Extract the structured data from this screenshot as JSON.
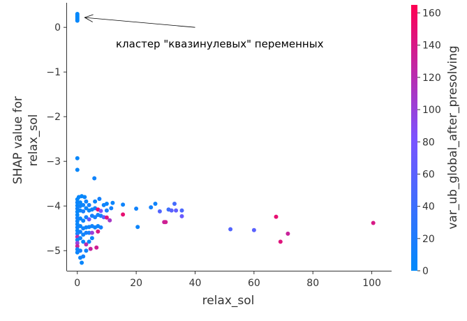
{
  "chart_data": {
    "type": "scatter",
    "title": "",
    "xlabel": "relax_sol",
    "ylabel": [
      "SHAP value for",
      "relax_sol"
    ],
    "xlim": [
      -3.5,
      106.5
    ],
    "ylim": [
      -5.45,
      0.55
    ],
    "xticks": [
      0,
      20,
      40,
      60,
      80,
      100
    ],
    "yticks": [
      0,
      -1,
      -2,
      -3,
      -4,
      -5
    ],
    "xtick_labels": [
      "0",
      "20",
      "40",
      "60",
      "80",
      "100"
    ],
    "ytick_labels": [
      "0",
      "−1",
      "−2",
      "−3",
      "−4",
      "−5"
    ],
    "grid": false,
    "colorbar": {
      "label": "var_ub_global_after_presolving",
      "range": [
        0,
        165
      ],
      "ticks": [
        0,
        20,
        40,
        60,
        80,
        100,
        120,
        140,
        160
      ],
      "tick_labels": [
        "0",
        "20",
        "40",
        "60",
        "80",
        "100",
        "120",
        "140",
        "160"
      ],
      "low_color": "#008afb",
      "mid_color": "#7c52ff",
      "high_color": "#ff0052"
    },
    "annotation": {
      "text": "кластер \"квазинулевых\" переменных",
      "arrow_from": [
        40,
        0.0
      ],
      "arrow_to": [
        2.5,
        0.22
      ]
    },
    "points": [
      {
        "x": 0.0,
        "y": 0.3,
        "c": 2
      },
      {
        "x": 0.0,
        "y": 0.27,
        "c": 4
      },
      {
        "x": 0.0,
        "y": 0.24,
        "c": 1
      },
      {
        "x": 0.0,
        "y": 0.21,
        "c": 3
      },
      {
        "x": 0.0,
        "y": 0.18,
        "c": 2
      },
      {
        "x": 0.0,
        "y": 0.15,
        "c": 5
      },
      {
        "x": 0.0,
        "y": -2.93,
        "c": 5
      },
      {
        "x": 0.0,
        "y": -3.19,
        "c": 5
      },
      {
        "x": 5.8,
        "y": -3.38,
        "c": 10
      },
      {
        "x": 0.5,
        "y": -3.8,
        "c": 5
      },
      {
        "x": 1.5,
        "y": -3.78,
        "c": 4
      },
      {
        "x": 2.5,
        "y": -3.8,
        "c": 6
      },
      {
        "x": 0.0,
        "y": -3.85,
        "c": 3
      },
      {
        "x": 0.0,
        "y": -3.92,
        "c": 8
      },
      {
        "x": 0.0,
        "y": -3.99,
        "c": 6
      },
      {
        "x": 0.0,
        "y": -4.06,
        "c": 10
      },
      {
        "x": 0.0,
        "y": -4.13,
        "c": 4
      },
      {
        "x": 0.0,
        "y": -4.2,
        "c": 3
      },
      {
        "x": 0.0,
        "y": -4.27,
        "c": 12
      },
      {
        "x": 0.0,
        "y": -4.34,
        "c": 7
      },
      {
        "x": 0.0,
        "y": -4.41,
        "c": 5
      },
      {
        "x": 0.0,
        "y": -4.48,
        "c": 9
      },
      {
        "x": 0.0,
        "y": -4.55,
        "c": 6
      },
      {
        "x": 0.0,
        "y": -4.62,
        "c": 14
      },
      {
        "x": 0.0,
        "y": -4.69,
        "c": 120
      },
      {
        "x": 0.0,
        "y": -4.76,
        "c": 8
      },
      {
        "x": 0.0,
        "y": -4.83,
        "c": 100
      },
      {
        "x": 0.0,
        "y": -4.9,
        "c": 130
      },
      {
        "x": 0.0,
        "y": -4.97,
        "c": 11
      },
      {
        "x": 0.0,
        "y": -5.04,
        "c": 7
      },
      {
        "x": 1.0,
        "y": -3.92,
        "c": 4
      },
      {
        "x": 1.0,
        "y": -4.0,
        "c": 9
      },
      {
        "x": 1.0,
        "y": -4.1,
        "c": 6
      },
      {
        "x": 1.0,
        "y": -4.28,
        "c": 5
      },
      {
        "x": 1.0,
        "y": -4.45,
        "c": 7
      },
      {
        "x": 1.0,
        "y": -4.58,
        "c": 12
      },
      {
        "x": 1.0,
        "y": -4.72,
        "c": 10
      },
      {
        "x": 1.0,
        "y": -5.0,
        "c": 15
      },
      {
        "x": 1.0,
        "y": -5.16,
        "c": 8
      },
      {
        "x": 1.5,
        "y": -5.27,
        "c": 6
      },
      {
        "x": 2.0,
        "y": -3.98,
        "c": 8
      },
      {
        "x": 2.0,
        "y": -4.12,
        "c": 16
      },
      {
        "x": 2.0,
        "y": -4.33,
        "c": 7
      },
      {
        "x": 2.0,
        "y": -4.5,
        "c": 11
      },
      {
        "x": 2.0,
        "y": -4.64,
        "c": 9
      },
      {
        "x": 2.0,
        "y": -4.8,
        "c": 6
      },
      {
        "x": 2.0,
        "y": -5.13,
        "c": 12
      },
      {
        "x": 3.0,
        "y": -3.9,
        "c": 10
      },
      {
        "x": 3.0,
        "y": -4.05,
        "c": 7
      },
      {
        "x": 3.0,
        "y": -4.25,
        "c": 13
      },
      {
        "x": 3.0,
        "y": -4.48,
        "c": 8
      },
      {
        "x": 3.0,
        "y": -4.6,
        "c": 14
      },
      {
        "x": 3.0,
        "y": -4.86,
        "c": 120
      },
      {
        "x": 3.0,
        "y": -5.0,
        "c": 9
      },
      {
        "x": 4.0,
        "y": -3.98,
        "c": 12
      },
      {
        "x": 4.0,
        "y": -4.1,
        "c": 6
      },
      {
        "x": 4.0,
        "y": -4.3,
        "c": 70
      },
      {
        "x": 4.0,
        "y": -4.47,
        "c": 10
      },
      {
        "x": 4.0,
        "y": -4.6,
        "c": 15
      },
      {
        "x": 4.0,
        "y": -4.8,
        "c": 8
      },
      {
        "x": 4.5,
        "y": -4.96,
        "c": 130
      },
      {
        "x": 5.0,
        "y": -4.08,
        "c": 9
      },
      {
        "x": 5.0,
        "y": -4.22,
        "c": 14
      },
      {
        "x": 5.0,
        "y": -4.45,
        "c": 11
      },
      {
        "x": 5.0,
        "y": -4.6,
        "c": 100
      },
      {
        "x": 5.0,
        "y": -4.72,
        "c": 7
      },
      {
        "x": 6.0,
        "y": -3.9,
        "c": 8
      },
      {
        "x": 6.0,
        "y": -4.05,
        "c": 12
      },
      {
        "x": 6.0,
        "y": -4.25,
        "c": 16
      },
      {
        "x": 6.0,
        "y": -4.48,
        "c": 10
      },
      {
        "x": 6.5,
        "y": -4.93,
        "c": 135
      },
      {
        "x": 7.0,
        "y": -4.08,
        "c": 150
      },
      {
        "x": 7.0,
        "y": -4.2,
        "c": 11
      },
      {
        "x": 7.0,
        "y": -4.45,
        "c": 9
      },
      {
        "x": 7.0,
        "y": -4.57,
        "c": 140
      },
      {
        "x": 7.5,
        "y": -3.84,
        "c": 13
      },
      {
        "x": 8.0,
        "y": -4.11,
        "c": 80
      },
      {
        "x": 8.0,
        "y": -4.22,
        "c": 12
      },
      {
        "x": 8.0,
        "y": -4.48,
        "c": 14
      },
      {
        "x": 9.0,
        "y": -3.98,
        "c": 10
      },
      {
        "x": 9.0,
        "y": -4.25,
        "c": 60
      },
      {
        "x": 10.0,
        "y": -3.95,
        "c": 8
      },
      {
        "x": 10.0,
        "y": -4.1,
        "c": 15
      },
      {
        "x": 10.0,
        "y": -4.26,
        "c": 145
      },
      {
        "x": 11.0,
        "y": -4.32,
        "c": 110
      },
      {
        "x": 12.0,
        "y": -3.93,
        "c": 7
      },
      {
        "x": 11.5,
        "y": -4.05,
        "c": 12
      },
      {
        "x": 15.5,
        "y": -3.97,
        "c": 9
      },
      {
        "x": 15.5,
        "y": -4.19,
        "c": 150
      },
      {
        "x": 20.0,
        "y": -4.06,
        "c": 11
      },
      {
        "x": 20.5,
        "y": -4.47,
        "c": 8
      },
      {
        "x": 25.0,
        "y": -4.03,
        "c": 13
      },
      {
        "x": 26.5,
        "y": -3.95,
        "c": 10
      },
      {
        "x": 28.0,
        "y": -4.12,
        "c": 55
      },
      {
        "x": 29.5,
        "y": -4.36,
        "c": 130
      },
      {
        "x": 30.0,
        "y": -4.36,
        "c": 135
      },
      {
        "x": 31.0,
        "y": -4.08,
        "c": 40
      },
      {
        "x": 32.0,
        "y": -4.1,
        "c": 60
      },
      {
        "x": 33.0,
        "y": -3.95,
        "c": 45
      },
      {
        "x": 33.5,
        "y": -4.1,
        "c": 65
      },
      {
        "x": 35.5,
        "y": -4.1,
        "c": 50
      },
      {
        "x": 35.5,
        "y": -4.23,
        "c": 70
      },
      {
        "x": 52.0,
        "y": -4.52,
        "c": 55
      },
      {
        "x": 60.0,
        "y": -4.54,
        "c": 60
      },
      {
        "x": 67.5,
        "y": -4.24,
        "c": 150
      },
      {
        "x": 69.0,
        "y": -4.8,
        "c": 145
      },
      {
        "x": 71.5,
        "y": -4.62,
        "c": 130
      },
      {
        "x": 100.5,
        "y": -4.38,
        "c": 140
      }
    ]
  }
}
